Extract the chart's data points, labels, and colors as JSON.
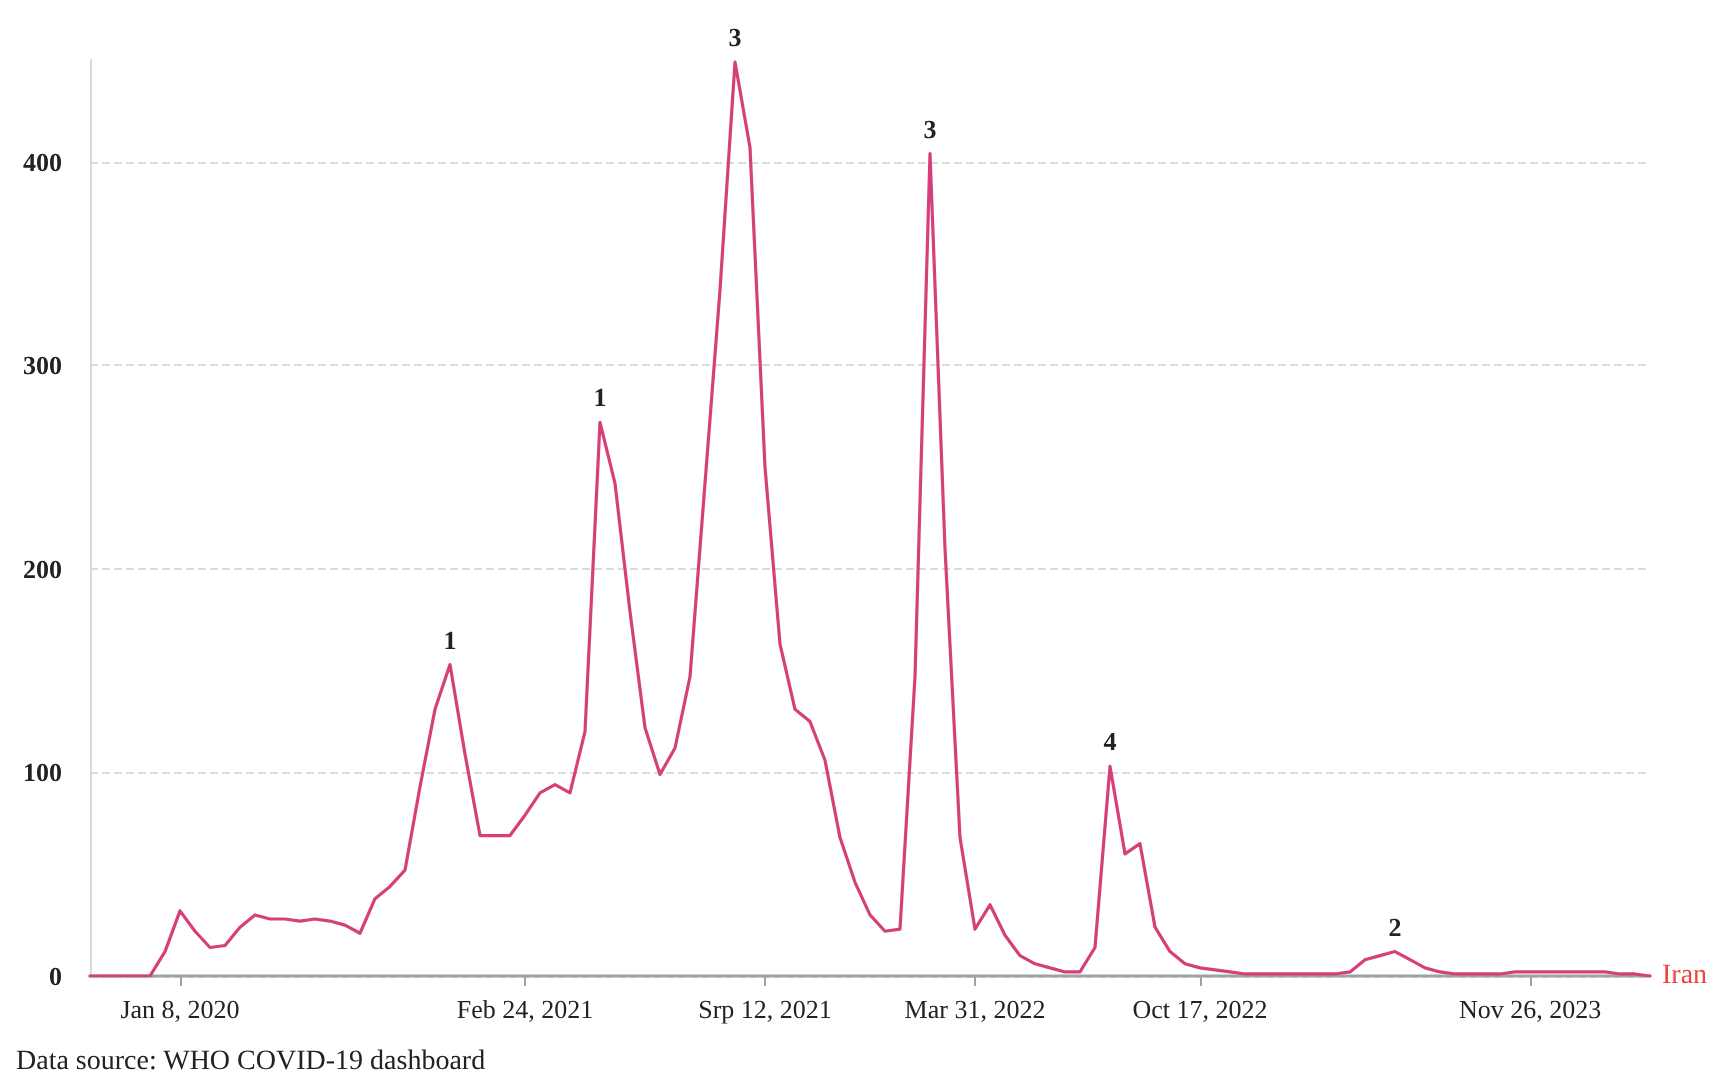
{
  "chart_data": {
    "type": "line",
    "categories": [
      null,
      null,
      null,
      null,
      null,
      null,
      "Jan 8, 2020",
      null,
      null,
      null,
      null,
      null,
      null,
      null,
      null,
      null,
      null,
      null,
      null,
      null,
      null,
      null,
      null,
      null,
      null,
      null,
      null,
      null,
      null,
      "Feb 24, 2021",
      null,
      null,
      null,
      null,
      null,
      null,
      null,
      null,
      null,
      null,
      null,
      null,
      null,
      null,
      null,
      "Srp 12, 2021",
      null,
      null,
      null,
      null,
      null,
      null,
      null,
      null,
      null,
      null,
      null,
      null,
      null,
      "Mar 31, 2022",
      null,
      null,
      null,
      null,
      null,
      null,
      null,
      null,
      null,
      null,
      null,
      null,
      null,
      null,
      "Oct 17, 2022",
      null,
      null,
      null,
      null,
      null,
      null,
      null,
      null,
      null,
      null,
      null,
      null,
      null,
      null,
      null,
      null,
      null,
      null,
      null,
      null,
      null,
      "Nov 26, 2023",
      null,
      null,
      null,
      null,
      null,
      null,
      null,
      null
    ],
    "series": [
      {
        "name": "Iran",
        "color": "#d6407a",
        "values": [
          0,
          0,
          0,
          0,
          0,
          12,
          32,
          22,
          14,
          15,
          24,
          30,
          28,
          28,
          27,
          28,
          27,
          25,
          21,
          38,
          44,
          52,
          93,
          131,
          153,
          109,
          69,
          69,
          69,
          79,
          90,
          94,
          90,
          120,
          272,
          242,
          179,
          122,
          99,
          112,
          147,
          242,
          337,
          449,
          407,
          250,
          163,
          131,
          125,
          106,
          68,
          46,
          30,
          22,
          23,
          147,
          404,
          210,
          68,
          23,
          35,
          20,
          10,
          6,
          4,
          2,
          2,
          14,
          103,
          60,
          65,
          24,
          12,
          6,
          4,
          3,
          2,
          1,
          1,
          1,
          1,
          1,
          1,
          1,
          2,
          8,
          10,
          12,
          8,
          4,
          2,
          1,
          1,
          1,
          1,
          2,
          2,
          2,
          2,
          2,
          2,
          2,
          1,
          1,
          0
        ]
      }
    ],
    "ylim": [
      0,
      450
    ],
    "yticks": [
      0,
      100,
      200,
      300,
      400
    ],
    "grid": "y",
    "marker": "none",
    "line_style": "solid",
    "annotations": [
      {
        "text": "1",
        "y": 153
      },
      {
        "text": "1",
        "y": 272
      },
      {
        "text": "3",
        "y": 449
      },
      {
        "text": "3",
        "y": 404
      },
      {
        "text": "4",
        "y": 103
      },
      {
        "text": "2",
        "y": 12
      },
      "Data source: WHO COVID-19 dashboard"
    ]
  }
}
